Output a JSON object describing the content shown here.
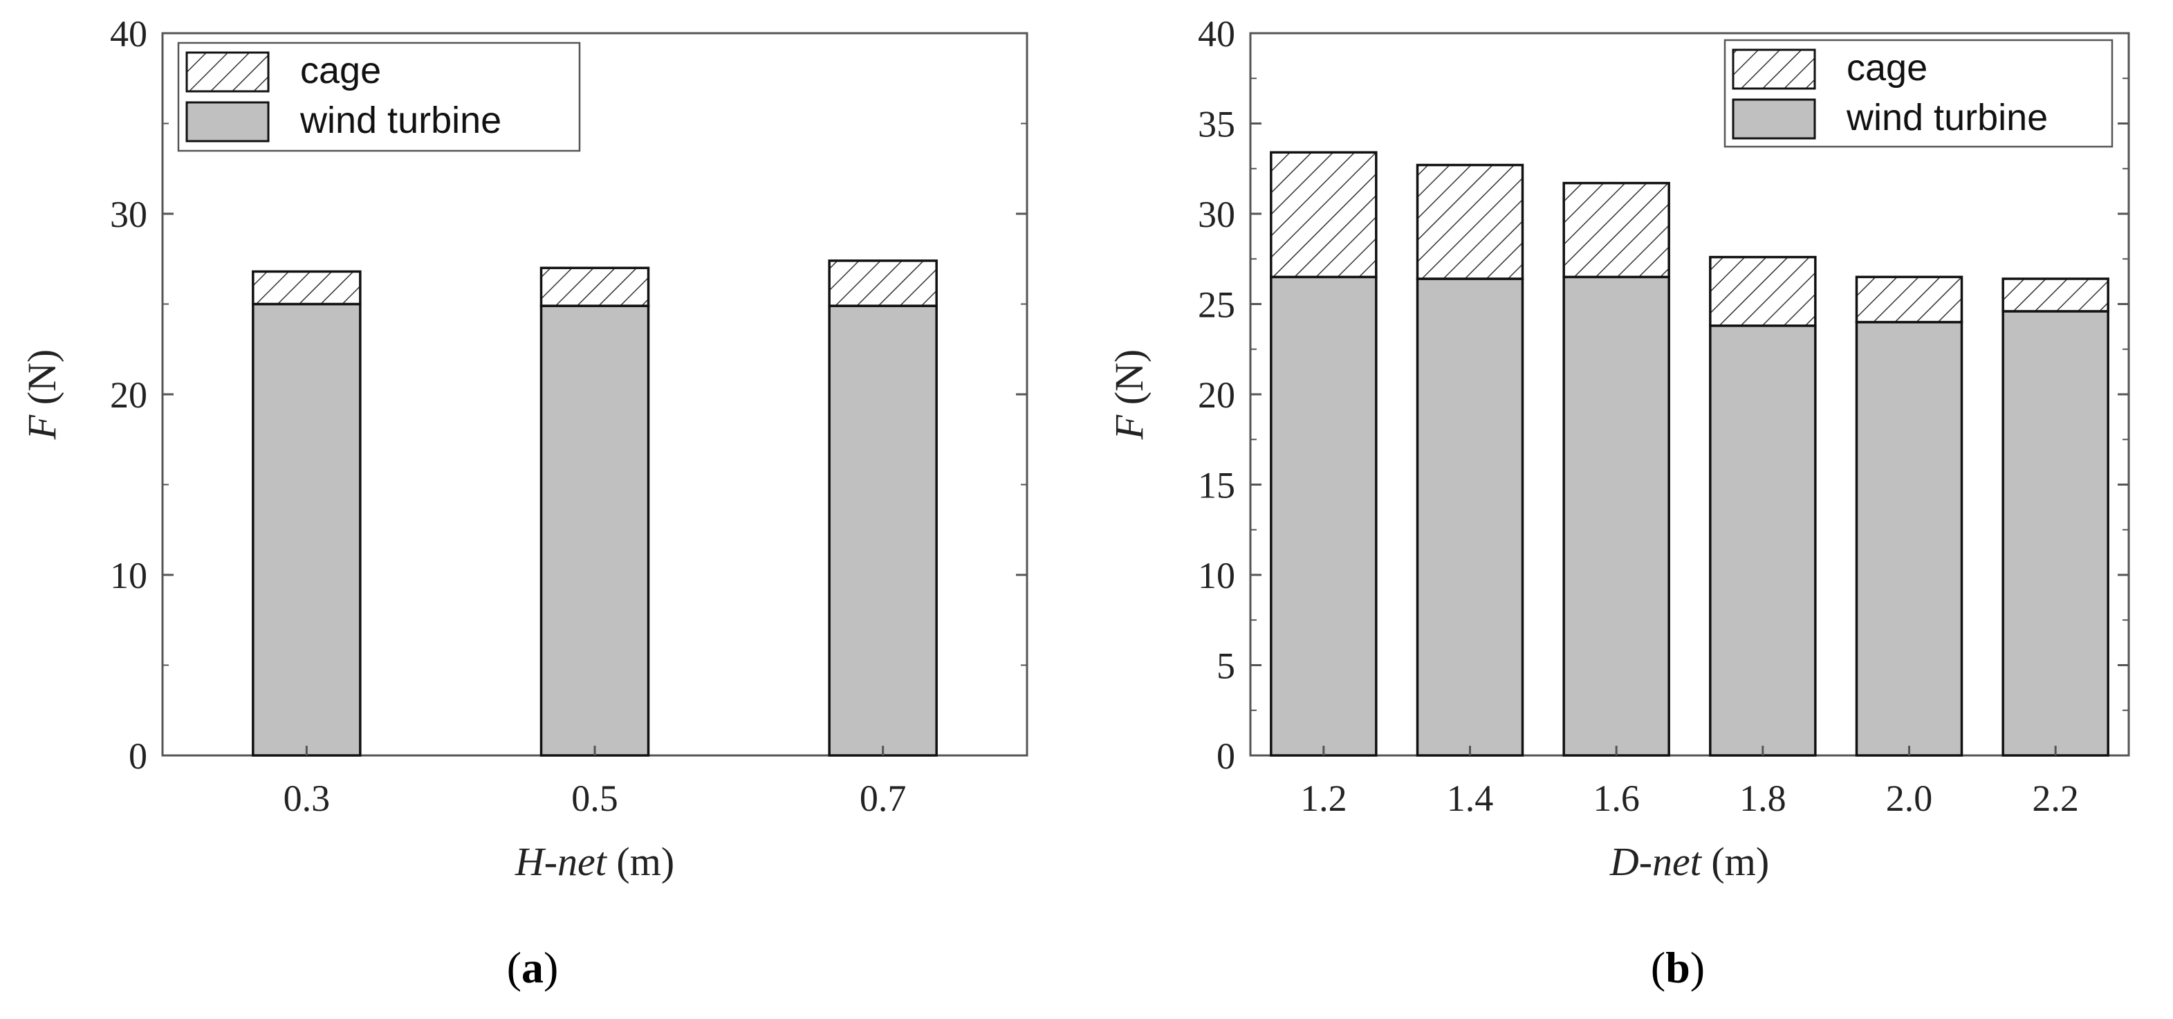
{
  "figure": {
    "panel_labels": [
      "(a)",
      "(b)"
    ]
  },
  "chart_data": [
    {
      "type": "bar",
      "stacked": true,
      "categories": [
        "0.3",
        "0.5",
        "0.7"
      ],
      "series": [
        {
          "name": "wind turbine",
          "values": [
            25.0,
            24.9,
            24.9
          ],
          "fill": "#c0c0c0",
          "pattern": "solid"
        },
        {
          "name": "cage",
          "values": [
            1.8,
            2.1,
            2.5
          ],
          "fill": "#ffffff",
          "pattern": "hatch"
        }
      ],
      "xlabel_italic": "H-net",
      "xlabel_unit": " (m)",
      "ylabel_italic": "F",
      "ylabel_unit": " (N)",
      "ylim": [
        0,
        40
      ],
      "yticks": [
        "0",
        "10",
        "20",
        "30",
        "40"
      ],
      "legend_position": "top-left",
      "grid": false
    },
    {
      "type": "bar",
      "stacked": true,
      "categories": [
        "1.2",
        "1.4",
        "1.6",
        "1.8",
        "2.0",
        "2.2"
      ],
      "series": [
        {
          "name": "wind turbine",
          "values": [
            26.5,
            26.4,
            26.5,
            23.8,
            24.0,
            24.6
          ],
          "fill": "#c0c0c0",
          "pattern": "solid"
        },
        {
          "name": "cage",
          "values": [
            6.9,
            6.3,
            5.2,
            3.8,
            2.5,
            1.8
          ],
          "fill": "#ffffff",
          "pattern": "hatch"
        }
      ],
      "xlabel_italic": "D-net",
      "xlabel_unit": " (m)",
      "ylabel_italic": "F",
      "ylabel_unit": " (N)",
      "ylim": [
        0,
        40
      ],
      "yticks": [
        "0",
        "5",
        "10",
        "15",
        "20",
        "25",
        "30",
        "35",
        "40"
      ],
      "legend_position": "top-right",
      "grid": false
    }
  ]
}
